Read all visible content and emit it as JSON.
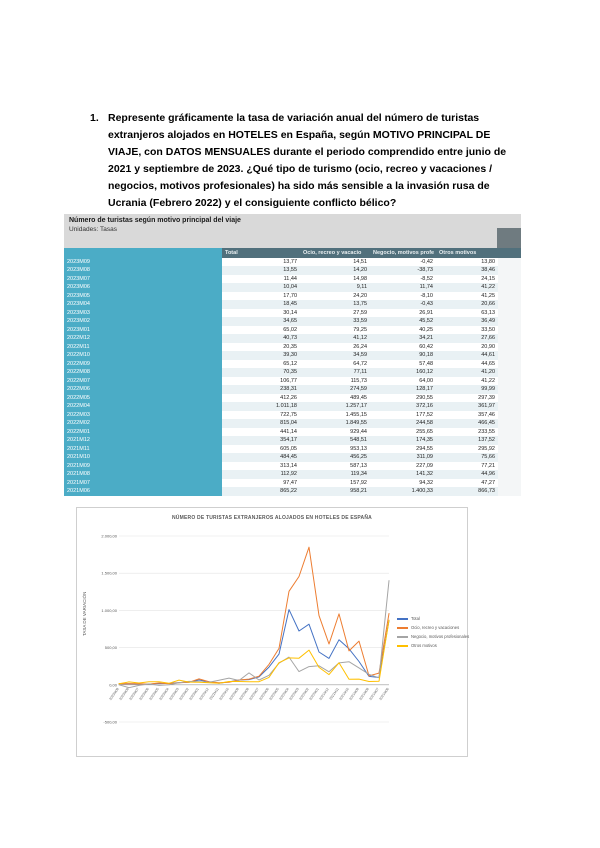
{
  "page": {
    "question_number": "1.",
    "question_text": "Represente gráficamente la tasa de variación anual del número de turistas extranjeros alojados en HOTELES en España, según MOTIVO PRINCIPAL DE VIAJE, con DATOS MENSUALES durante el periodo comprendido entre junio de 2021 y septiembre de 2023. ¿Qué tipo de turismo (ocio, recreo y vacaciones / negocios, motivos profesionales) ha sido más sensible a la invasión rusa de Ucrania (Febrero 2022) y el consiguiente conflicto bélico?"
  },
  "table": {
    "title": "Número de turistas según motivo principal del viaje",
    "units": "Unidades: Tasas",
    "columns": [
      "Total",
      "Ocio, recreo y vacacio",
      "Negocio, motivos profe",
      "Otros motivos"
    ]
  },
  "chart_data": {
    "type": "line",
    "title": "NÚMERO DE TURISTAS EXTRANJEROS ALOJADOS EN HOTELES DE ESPAÑA",
    "ylabel": "TASA DE VARIACIÓN",
    "x": [
      "2023M09",
      "2023M08",
      "2023M07",
      "2023M06",
      "2023M05",
      "2023M04",
      "2023M03",
      "2023M02",
      "2023M01",
      "2022M12",
      "2022M11",
      "2022M10",
      "2022M09",
      "2022M08",
      "2022M07",
      "2022M06",
      "2022M05",
      "2022M04",
      "2022M03",
      "2022M02",
      "2022M01",
      "2021M12",
      "2021M11",
      "2021M10",
      "2021M09",
      "2021M08",
      "2021M07",
      "2021M06"
    ],
    "series": [
      {
        "name": "Total",
        "color": "#4472C4",
        "values": [
          13.77,
          13.55,
          11.44,
          10.04,
          17.7,
          18.45,
          30.14,
          34.65,
          65.02,
          40.73,
          20.35,
          39.3,
          65.12,
          70.35,
          106.77,
          238.31,
          412.26,
          1011.18,
          722.75,
          815.04,
          441.14,
          354.17,
          605.05,
          484.45,
          313.14,
          112.92,
          97.47,
          865.22
        ]
      },
      {
        "name": "Ocio, recreo y vacaciones",
        "color": "#ED7D31",
        "values": [
          14.51,
          14.2,
          14.98,
          9.11,
          24.2,
          13.75,
          27.59,
          33.59,
          79.25,
          41.12,
          26.24,
          34.59,
          64.72,
          77.11,
          115.73,
          274.59,
          489.45,
          1257.17,
          1455.15,
          1849.55,
          929.44,
          548.51,
          953.13,
          456.25,
          587.13,
          119.34,
          157.92,
          958.21
        ]
      },
      {
        "name": "Negocio, motivos profesionales",
        "color": "#A5A5A5",
        "values": [
          -0.42,
          -38.73,
          -8.52,
          11.74,
          -8.1,
          -0.43,
          26.91,
          45.52,
          40.25,
          34.21,
          60.42,
          90.18,
          57.48,
          160.12,
          64.0,
          128.17,
          290.55,
          372.16,
          177.52,
          244.58,
          255.65,
          174.35,
          294.55,
          311.09,
          227.09,
          141.32,
          94.32,
          1400.33
        ]
      },
      {
        "name": "Otros motivos",
        "color": "#FFC000",
        "values": [
          13.8,
          38.46,
          24.15,
          41.22,
          41.25,
          20.66,
          63.13,
          36.49,
          33.5,
          27.66,
          20.9,
          44.61,
          44.65,
          41.2,
          41.22,
          99.99,
          297.39,
          361.97,
          357.46,
          466.45,
          233.55,
          137.52,
          295.92,
          75.66,
          77.21,
          44.96,
          47.27,
          866.73
        ]
      }
    ],
    "ylim": [
      -500,
      2000
    ],
    "yticks": [
      -500,
      0,
      500,
      1000,
      1500,
      2000
    ],
    "grid": true,
    "legend_position": "right"
  }
}
